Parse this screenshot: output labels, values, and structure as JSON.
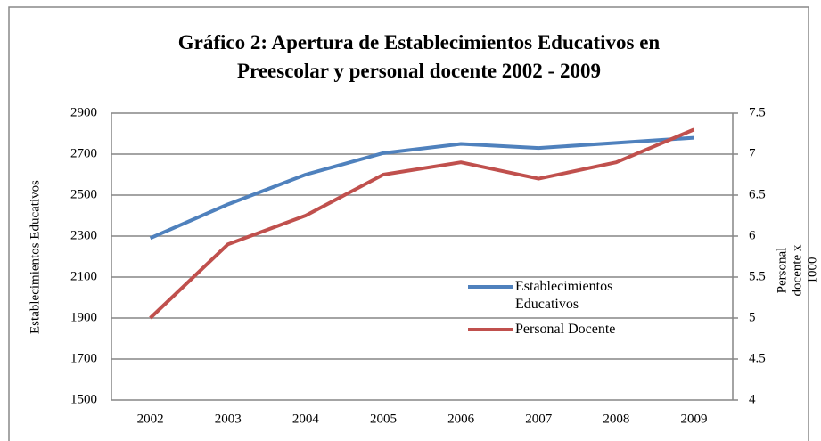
{
  "chart_data": {
    "type": "line",
    "title": "Gráfico 2:  Apertura de Establecimientos Educativos en Preescolar  y personal docente 2002 - 2009",
    "y_label": "Establecimientos Educativos",
    "y2_label": "Personal docente x 1000",
    "categories": [
      "2002",
      "2003",
      "2004",
      "2005",
      "2006",
      "2007",
      "2008",
      "2009"
    ],
    "series": [
      {
        "name": "Establecimientos Educativos",
        "color": "#4f81bd",
        "values": [
          2290,
          2455,
          2600,
          2705,
          2750,
          2730,
          2755,
          2780
        ]
      },
      {
        "name": "Personal Docente",
        "color": "#c0504d",
        "axis": "y2",
        "values": [
          5.0,
          5.9,
          6.25,
          6.75,
          6.9,
          6.7,
          6.9,
          7.3
        ]
      }
    ],
    "ylim": [
      1500,
      2900
    ],
    "yticks": [
      1500,
      1700,
      1900,
      2100,
      2300,
      2500,
      2700,
      2900
    ],
    "y2lim": [
      4,
      7.5
    ],
    "y2ticks": [
      4,
      4.5,
      5,
      5.5,
      6,
      6.5,
      7,
      7.5
    ],
    "grid": true,
    "legend": "inside-right"
  }
}
